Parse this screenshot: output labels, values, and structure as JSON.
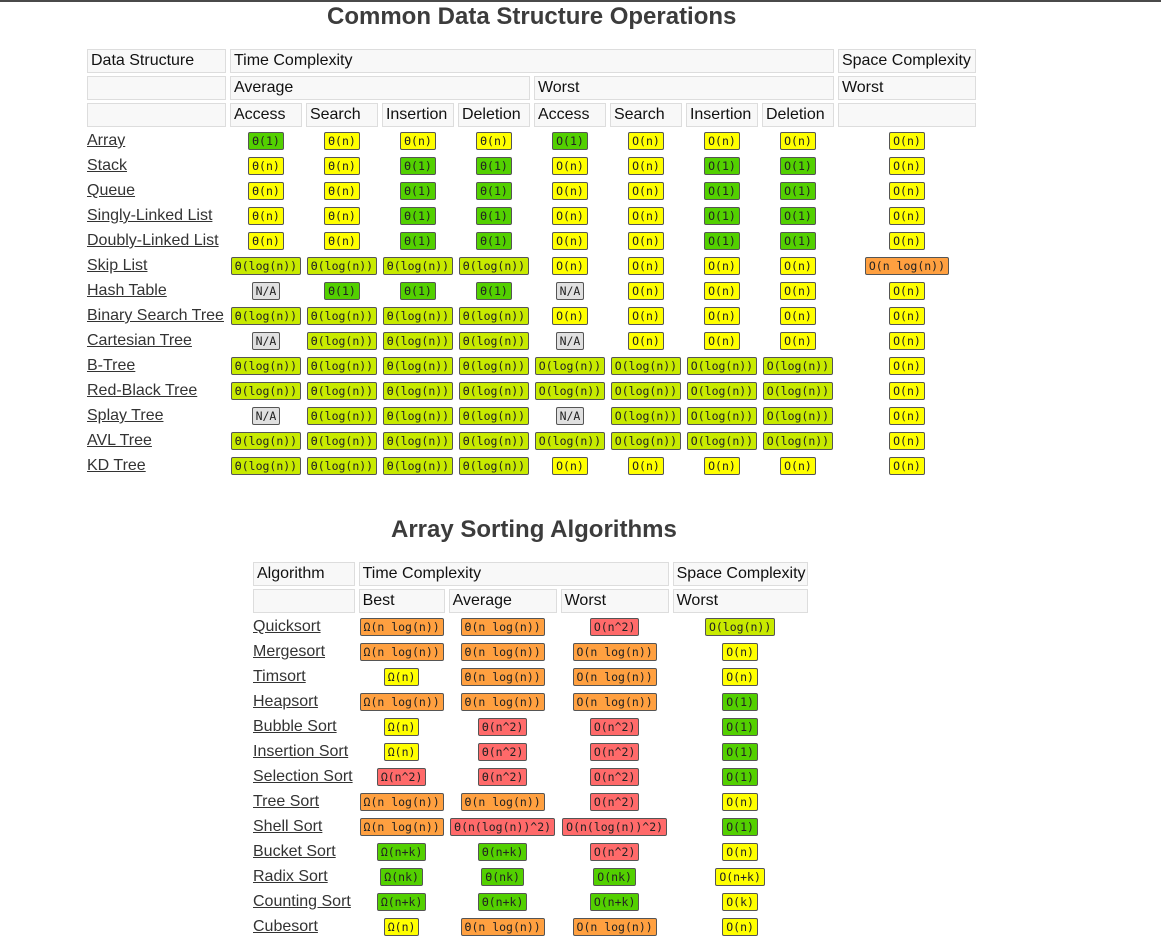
{
  "colors": {
    "good": "#53d000",
    "fair": "#c8ea00",
    "ok": "#ffff00",
    "bad": "#ffa040",
    "worst": "#ff6a6a",
    "na": "#e0e0e0"
  },
  "data_structures": {
    "title": "Common Data Structure Operations",
    "headers": {
      "data_structure": "Data Structure",
      "time_complexity": "Time Complexity",
      "space_complexity": "Space Complexity",
      "average": "Average",
      "worst": "Worst",
      "space_worst": "Worst",
      "ops": [
        "Access",
        "Search",
        "Insertion",
        "Deletion",
        "Access",
        "Search",
        "Insertion",
        "Deletion"
      ]
    },
    "rows": [
      {
        "name": "Array",
        "cells": [
          [
            "Θ(1)",
            "good"
          ],
          [
            "Θ(n)",
            "ok"
          ],
          [
            "Θ(n)",
            "ok"
          ],
          [
            "Θ(n)",
            "ok"
          ],
          [
            "O(1)",
            "good"
          ],
          [
            "O(n)",
            "ok"
          ],
          [
            "O(n)",
            "ok"
          ],
          [
            "O(n)",
            "ok"
          ],
          [
            "O(n)",
            "ok"
          ]
        ]
      },
      {
        "name": "Stack",
        "cells": [
          [
            "Θ(n)",
            "ok"
          ],
          [
            "Θ(n)",
            "ok"
          ],
          [
            "Θ(1)",
            "good"
          ],
          [
            "Θ(1)",
            "good"
          ],
          [
            "O(n)",
            "ok"
          ],
          [
            "O(n)",
            "ok"
          ],
          [
            "O(1)",
            "good"
          ],
          [
            "O(1)",
            "good"
          ],
          [
            "O(n)",
            "ok"
          ]
        ]
      },
      {
        "name": "Queue",
        "cells": [
          [
            "Θ(n)",
            "ok"
          ],
          [
            "Θ(n)",
            "ok"
          ],
          [
            "Θ(1)",
            "good"
          ],
          [
            "Θ(1)",
            "good"
          ],
          [
            "O(n)",
            "ok"
          ],
          [
            "O(n)",
            "ok"
          ],
          [
            "O(1)",
            "good"
          ],
          [
            "O(1)",
            "good"
          ],
          [
            "O(n)",
            "ok"
          ]
        ]
      },
      {
        "name": "Singly-Linked List",
        "cells": [
          [
            "Θ(n)",
            "ok"
          ],
          [
            "Θ(n)",
            "ok"
          ],
          [
            "Θ(1)",
            "good"
          ],
          [
            "Θ(1)",
            "good"
          ],
          [
            "O(n)",
            "ok"
          ],
          [
            "O(n)",
            "ok"
          ],
          [
            "O(1)",
            "good"
          ],
          [
            "O(1)",
            "good"
          ],
          [
            "O(n)",
            "ok"
          ]
        ]
      },
      {
        "name": "Doubly-Linked List",
        "cells": [
          [
            "Θ(n)",
            "ok"
          ],
          [
            "Θ(n)",
            "ok"
          ],
          [
            "Θ(1)",
            "good"
          ],
          [
            "Θ(1)",
            "good"
          ],
          [
            "O(n)",
            "ok"
          ],
          [
            "O(n)",
            "ok"
          ],
          [
            "O(1)",
            "good"
          ],
          [
            "O(1)",
            "good"
          ],
          [
            "O(n)",
            "ok"
          ]
        ]
      },
      {
        "name": "Skip List",
        "cells": [
          [
            "Θ(log(n))",
            "fair"
          ],
          [
            "Θ(log(n))",
            "fair"
          ],
          [
            "Θ(log(n))",
            "fair"
          ],
          [
            "Θ(log(n))",
            "fair"
          ],
          [
            "O(n)",
            "ok"
          ],
          [
            "O(n)",
            "ok"
          ],
          [
            "O(n)",
            "ok"
          ],
          [
            "O(n)",
            "ok"
          ],
          [
            "O(n log(n))",
            "bad"
          ]
        ]
      },
      {
        "name": "Hash Table",
        "cells": [
          [
            "N/A",
            "na"
          ],
          [
            "Θ(1)",
            "good"
          ],
          [
            "Θ(1)",
            "good"
          ],
          [
            "Θ(1)",
            "good"
          ],
          [
            "N/A",
            "na"
          ],
          [
            "O(n)",
            "ok"
          ],
          [
            "O(n)",
            "ok"
          ],
          [
            "O(n)",
            "ok"
          ],
          [
            "O(n)",
            "ok"
          ]
        ]
      },
      {
        "name": "Binary Search Tree",
        "cells": [
          [
            "Θ(log(n))",
            "fair"
          ],
          [
            "Θ(log(n))",
            "fair"
          ],
          [
            "Θ(log(n))",
            "fair"
          ],
          [
            "Θ(log(n))",
            "fair"
          ],
          [
            "O(n)",
            "ok"
          ],
          [
            "O(n)",
            "ok"
          ],
          [
            "O(n)",
            "ok"
          ],
          [
            "O(n)",
            "ok"
          ],
          [
            "O(n)",
            "ok"
          ]
        ]
      },
      {
        "name": "Cartesian Tree",
        "cells": [
          [
            "N/A",
            "na"
          ],
          [
            "Θ(log(n))",
            "fair"
          ],
          [
            "Θ(log(n))",
            "fair"
          ],
          [
            "Θ(log(n))",
            "fair"
          ],
          [
            "N/A",
            "na"
          ],
          [
            "O(n)",
            "ok"
          ],
          [
            "O(n)",
            "ok"
          ],
          [
            "O(n)",
            "ok"
          ],
          [
            "O(n)",
            "ok"
          ]
        ]
      },
      {
        "name": "B-Tree",
        "cells": [
          [
            "Θ(log(n))",
            "fair"
          ],
          [
            "Θ(log(n))",
            "fair"
          ],
          [
            "Θ(log(n))",
            "fair"
          ],
          [
            "Θ(log(n))",
            "fair"
          ],
          [
            "O(log(n))",
            "fair"
          ],
          [
            "O(log(n))",
            "fair"
          ],
          [
            "O(log(n))",
            "fair"
          ],
          [
            "O(log(n))",
            "fair"
          ],
          [
            "O(n)",
            "ok"
          ]
        ]
      },
      {
        "name": "Red-Black Tree",
        "cells": [
          [
            "Θ(log(n))",
            "fair"
          ],
          [
            "Θ(log(n))",
            "fair"
          ],
          [
            "Θ(log(n))",
            "fair"
          ],
          [
            "Θ(log(n))",
            "fair"
          ],
          [
            "O(log(n))",
            "fair"
          ],
          [
            "O(log(n))",
            "fair"
          ],
          [
            "O(log(n))",
            "fair"
          ],
          [
            "O(log(n))",
            "fair"
          ],
          [
            "O(n)",
            "ok"
          ]
        ]
      },
      {
        "name": "Splay Tree",
        "cells": [
          [
            "N/A",
            "na"
          ],
          [
            "Θ(log(n))",
            "fair"
          ],
          [
            "Θ(log(n))",
            "fair"
          ],
          [
            "Θ(log(n))",
            "fair"
          ],
          [
            "N/A",
            "na"
          ],
          [
            "O(log(n))",
            "fair"
          ],
          [
            "O(log(n))",
            "fair"
          ],
          [
            "O(log(n))",
            "fair"
          ],
          [
            "O(n)",
            "ok"
          ]
        ]
      },
      {
        "name": "AVL Tree",
        "cells": [
          [
            "Θ(log(n))",
            "fair"
          ],
          [
            "Θ(log(n))",
            "fair"
          ],
          [
            "Θ(log(n))",
            "fair"
          ],
          [
            "Θ(log(n))",
            "fair"
          ],
          [
            "O(log(n))",
            "fair"
          ],
          [
            "O(log(n))",
            "fair"
          ],
          [
            "O(log(n))",
            "fair"
          ],
          [
            "O(log(n))",
            "fair"
          ],
          [
            "O(n)",
            "ok"
          ]
        ]
      },
      {
        "name": "KD Tree",
        "cells": [
          [
            "Θ(log(n))",
            "fair"
          ],
          [
            "Θ(log(n))",
            "fair"
          ],
          [
            "Θ(log(n))",
            "fair"
          ],
          [
            "Θ(log(n))",
            "fair"
          ],
          [
            "O(n)",
            "ok"
          ],
          [
            "O(n)",
            "ok"
          ],
          [
            "O(n)",
            "ok"
          ],
          [
            "O(n)",
            "ok"
          ],
          [
            "O(n)",
            "ok"
          ]
        ]
      }
    ]
  },
  "sorting": {
    "title": "Array Sorting Algorithms",
    "headers": {
      "algorithm": "Algorithm",
      "time_complexity": "Time Complexity",
      "space_complexity": "Space Complexity",
      "best": "Best",
      "average": "Average",
      "worst": "Worst",
      "space_worst": "Worst"
    },
    "rows": [
      {
        "name": "Quicksort",
        "cells": [
          [
            "Ω(n log(n))",
            "bad"
          ],
          [
            "Θ(n log(n))",
            "bad"
          ],
          [
            "O(n^2)",
            "worst"
          ],
          [
            "O(log(n))",
            "fair"
          ]
        ]
      },
      {
        "name": "Mergesort",
        "cells": [
          [
            "Ω(n log(n))",
            "bad"
          ],
          [
            "Θ(n log(n))",
            "bad"
          ],
          [
            "O(n log(n))",
            "bad"
          ],
          [
            "O(n)",
            "ok"
          ]
        ]
      },
      {
        "name": "Timsort",
        "cells": [
          [
            "Ω(n)",
            "ok"
          ],
          [
            "Θ(n log(n))",
            "bad"
          ],
          [
            "O(n log(n))",
            "bad"
          ],
          [
            "O(n)",
            "ok"
          ]
        ]
      },
      {
        "name": "Heapsort",
        "cells": [
          [
            "Ω(n log(n))",
            "bad"
          ],
          [
            "Θ(n log(n))",
            "bad"
          ],
          [
            "O(n log(n))",
            "bad"
          ],
          [
            "O(1)",
            "good"
          ]
        ]
      },
      {
        "name": "Bubble Sort",
        "cells": [
          [
            "Ω(n)",
            "ok"
          ],
          [
            "Θ(n^2)",
            "worst"
          ],
          [
            "O(n^2)",
            "worst"
          ],
          [
            "O(1)",
            "good"
          ]
        ]
      },
      {
        "name": "Insertion Sort",
        "cells": [
          [
            "Ω(n)",
            "ok"
          ],
          [
            "Θ(n^2)",
            "worst"
          ],
          [
            "O(n^2)",
            "worst"
          ],
          [
            "O(1)",
            "good"
          ]
        ]
      },
      {
        "name": "Selection Sort",
        "cells": [
          [
            "Ω(n^2)",
            "worst"
          ],
          [
            "Θ(n^2)",
            "worst"
          ],
          [
            "O(n^2)",
            "worst"
          ],
          [
            "O(1)",
            "good"
          ]
        ]
      },
      {
        "name": "Tree Sort",
        "cells": [
          [
            "Ω(n log(n))",
            "bad"
          ],
          [
            "Θ(n log(n))",
            "bad"
          ],
          [
            "O(n^2)",
            "worst"
          ],
          [
            "O(n)",
            "ok"
          ]
        ]
      },
      {
        "name": "Shell Sort",
        "cells": [
          [
            "Ω(n log(n))",
            "bad"
          ],
          [
            "Θ(n(log(n))^2)",
            "worst"
          ],
          [
            "O(n(log(n))^2)",
            "worst"
          ],
          [
            "O(1)",
            "good"
          ]
        ]
      },
      {
        "name": "Bucket Sort",
        "cells": [
          [
            "Ω(n+k)",
            "good"
          ],
          [
            "Θ(n+k)",
            "good"
          ],
          [
            "O(n^2)",
            "worst"
          ],
          [
            "O(n)",
            "ok"
          ]
        ]
      },
      {
        "name": "Radix Sort",
        "cells": [
          [
            "Ω(nk)",
            "good"
          ],
          [
            "Θ(nk)",
            "good"
          ],
          [
            "O(nk)",
            "good"
          ],
          [
            "O(n+k)",
            "ok"
          ]
        ]
      },
      {
        "name": "Counting Sort",
        "cells": [
          [
            "Ω(n+k)",
            "good"
          ],
          [
            "Θ(n+k)",
            "good"
          ],
          [
            "O(n+k)",
            "good"
          ],
          [
            "O(k)",
            "ok"
          ]
        ]
      },
      {
        "name": "Cubesort",
        "cells": [
          [
            "Ω(n)",
            "ok"
          ],
          [
            "Θ(n log(n))",
            "bad"
          ],
          [
            "O(n log(n))",
            "bad"
          ],
          [
            "O(n)",
            "ok"
          ]
        ]
      }
    ]
  }
}
